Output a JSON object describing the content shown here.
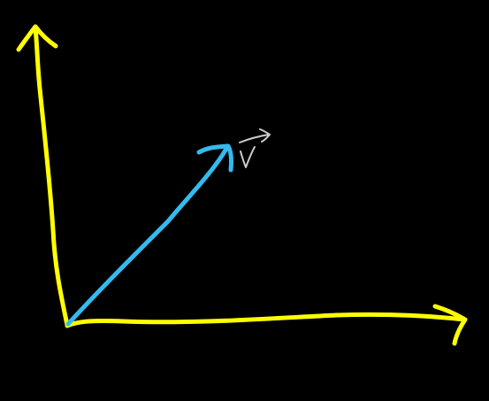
{
  "diagram": {
    "type": "hand-drawn-vector-sketch",
    "background_color": "#000000",
    "axes_color": "#ffff00",
    "vector_color": "#33bbee",
    "label_color": "#cccccc",
    "vector_label": "v",
    "vector_label_has_arrow": true
  }
}
